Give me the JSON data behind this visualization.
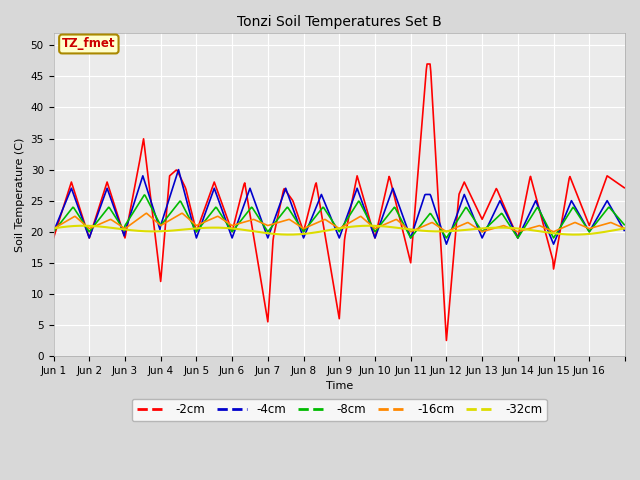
{
  "title": "Tonzi Soil Temperatures Set B",
  "xlabel": "Time",
  "ylabel": "Soil Temperature (C)",
  "ylim": [
    0,
    52
  ],
  "yticks": [
    0,
    5,
    10,
    15,
    20,
    25,
    30,
    35,
    40,
    45,
    50
  ],
  "bg_color": "#d8d8d8",
  "plot_bg_color": "#ebebeb",
  "annotation_text": "TZ_fmet",
  "annotation_bg": "#ffffcc",
  "annotation_border": "#aa8800",
  "annotation_text_color": "#cc0000",
  "series_colors": [
    "#ff0000",
    "#0000cc",
    "#00bb00",
    "#ff8800",
    "#dddd00"
  ],
  "series_labels": [
    "-2cm",
    "-4cm",
    "-8cm",
    "-16cm",
    "-32cm"
  ],
  "xtick_labels": [
    "Jun 1",
    "Jun 2",
    "Jun 3",
    "Jun 4",
    "Jun 5",
    "Jun 6",
    "Jun 7",
    "Jun 8",
    "Jun 9",
    "Jun 10",
    "Jun 11",
    "Jun 12",
    "Jun 13",
    "Jun 14",
    "Jun 15",
    "Jun 16"
  ],
  "n_days": 16,
  "grid_color": "#ffffff",
  "grid_linewidth": 0.8,
  "title_fontsize": 10,
  "axis_label_fontsize": 8,
  "tick_fontsize": 7.5
}
